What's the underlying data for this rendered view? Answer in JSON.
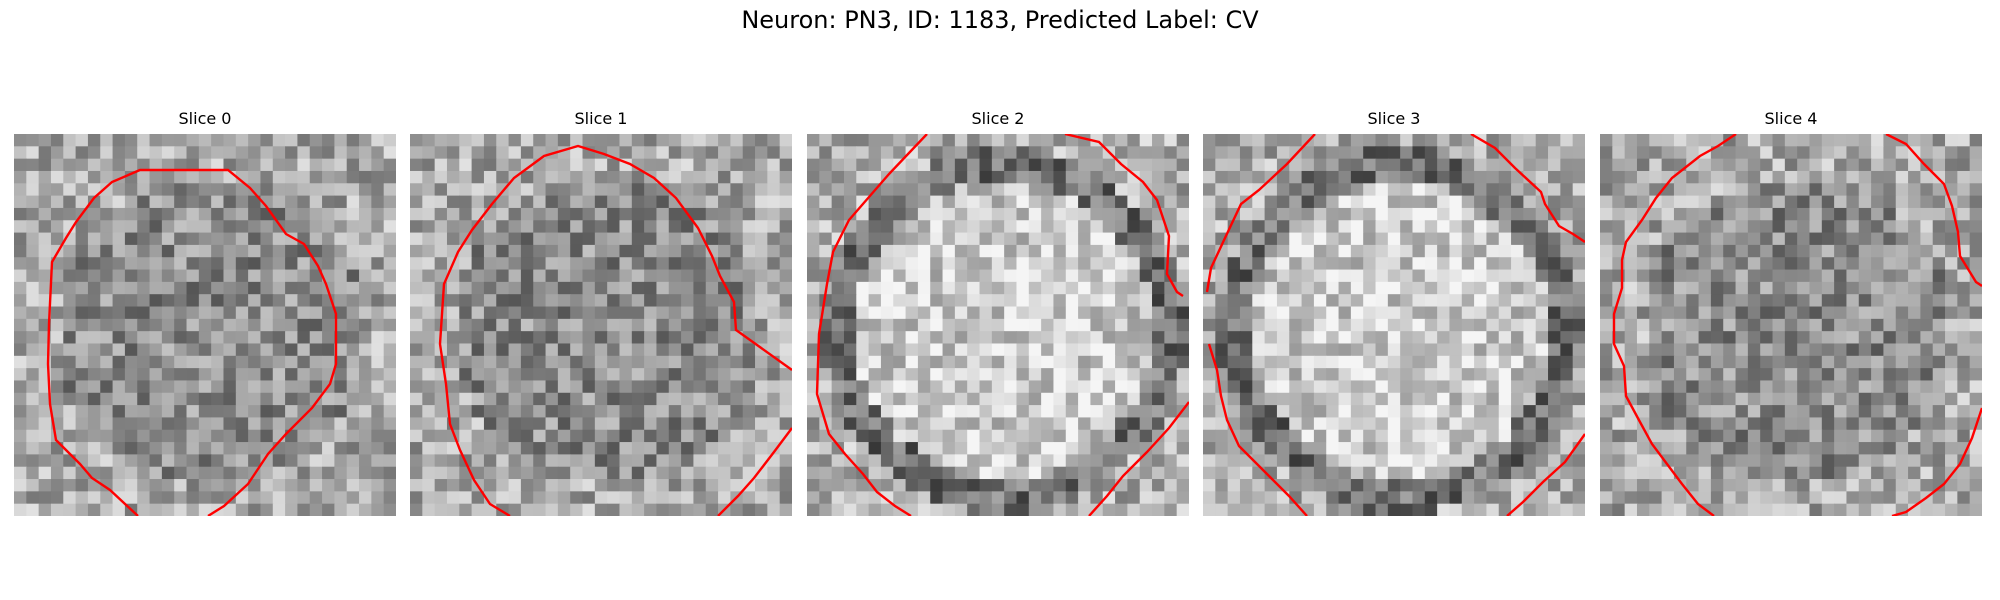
{
  "figure": {
    "title": "Neuron: PN3, ID: 1183, Predicted Label: CV"
  },
  "contour_color": "#ff0000",
  "panels": [
    {
      "title": "Slice 0",
      "seed": 11,
      "dark_ring": false
    },
    {
      "title": "Slice 1",
      "seed": 23,
      "dark_ring": false
    },
    {
      "title": "Slice 2",
      "seed": 37,
      "dark_ring": true
    },
    {
      "title": "Slice 3",
      "seed": 53,
      "dark_ring": true
    },
    {
      "title": "Slice 4",
      "seed": 71,
      "dark_ring": false
    }
  ]
}
